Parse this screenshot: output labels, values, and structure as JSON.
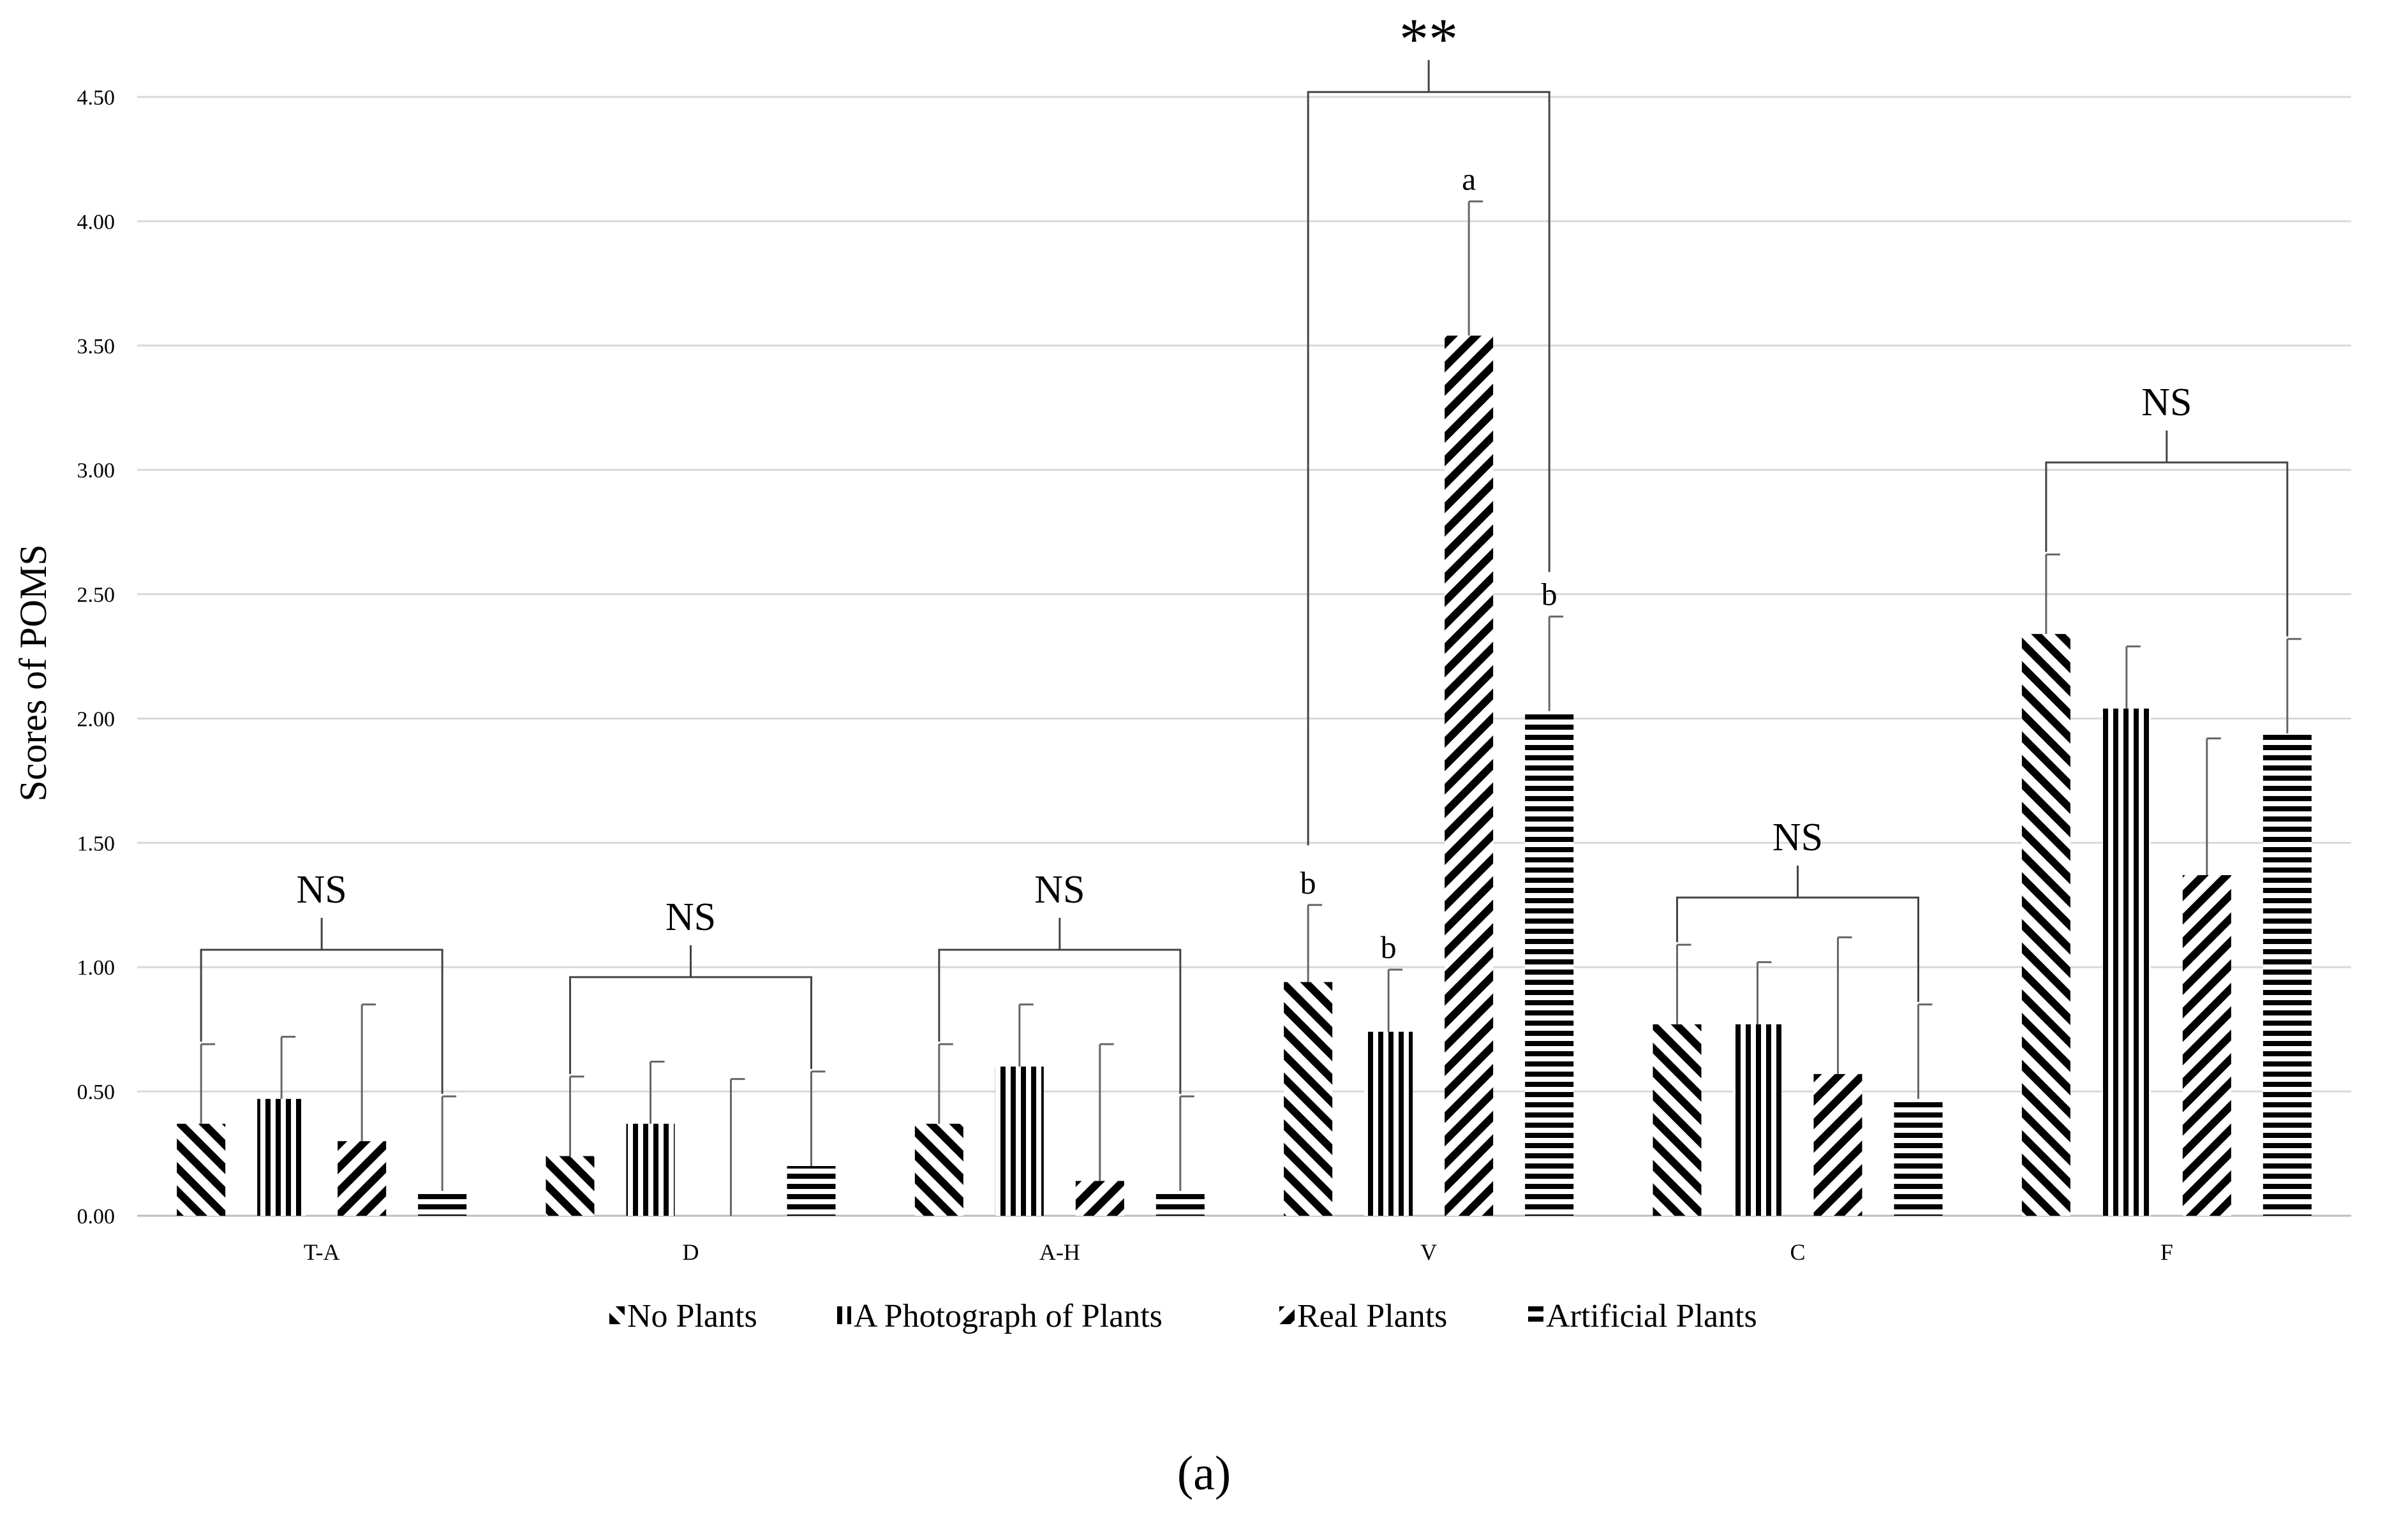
{
  "chart_data": {
    "type": "bar",
    "ylabel": "Scores of POMS",
    "xlabel": "",
    "ylim": [
      0,
      4.5
    ],
    "yticks": [
      "0.00",
      "0.50",
      "1.00",
      "1.50",
      "2.00",
      "2.50",
      "3.00",
      "3.50",
      "4.00",
      "4.50"
    ],
    "categories": [
      "T-A",
      "D",
      "A-H",
      "V",
      "C",
      "F"
    ],
    "series": [
      {
        "name": "No Plants",
        "pattern": "diag-down",
        "values": [
          0.37,
          0.24,
          0.37,
          0.94,
          0.77,
          2.34
        ],
        "errors": [
          0.32,
          0.32,
          0.32,
          0.31,
          0.32,
          0.32
        ]
      },
      {
        "name": "A Photograph of Plants",
        "pattern": "vertical",
        "values": [
          0.47,
          0.37,
          0.6,
          0.74,
          0.77,
          2.04
        ],
        "errors": [
          0.25,
          0.25,
          0.25,
          0.25,
          0.25,
          0.25
        ]
      },
      {
        "name": "Real Plants",
        "pattern": "diag-up",
        "values": [
          0.3,
          0.0,
          0.14,
          3.54,
          0.57,
          1.37
        ],
        "errors": [
          0.55,
          0.55,
          0.55,
          0.54,
          0.55,
          0.55
        ]
      },
      {
        "name": "Artificial Plants",
        "pattern": "horizontal",
        "values": [
          0.1,
          0.2,
          0.1,
          2.03,
          0.47,
          1.94
        ],
        "errors": [
          0.38,
          0.38,
          0.38,
          0.38,
          0.38,
          0.38
        ]
      }
    ],
    "significance": [
      {
        "category": "T-A",
        "label": "NS",
        "height": 1.07
      },
      {
        "category": "D",
        "label": "NS",
        "height": 0.96
      },
      {
        "category": "A-H",
        "label": "NS",
        "height": 1.07
      },
      {
        "category": "V",
        "label": "**",
        "height": 4.52
      },
      {
        "category": "C",
        "label": "NS",
        "height": 1.28
      },
      {
        "category": "F",
        "label": "NS",
        "height": 3.03
      }
    ],
    "letters": [
      {
        "category": "V",
        "series": 0,
        "label": "b"
      },
      {
        "category": "V",
        "series": 1,
        "label": "b"
      },
      {
        "category": "V",
        "series": 2,
        "label": "a"
      },
      {
        "category": "V",
        "series": 3,
        "label": "b"
      }
    ],
    "legend_position": "bottom-center",
    "panel_label": "(a)",
    "grid": true
  }
}
